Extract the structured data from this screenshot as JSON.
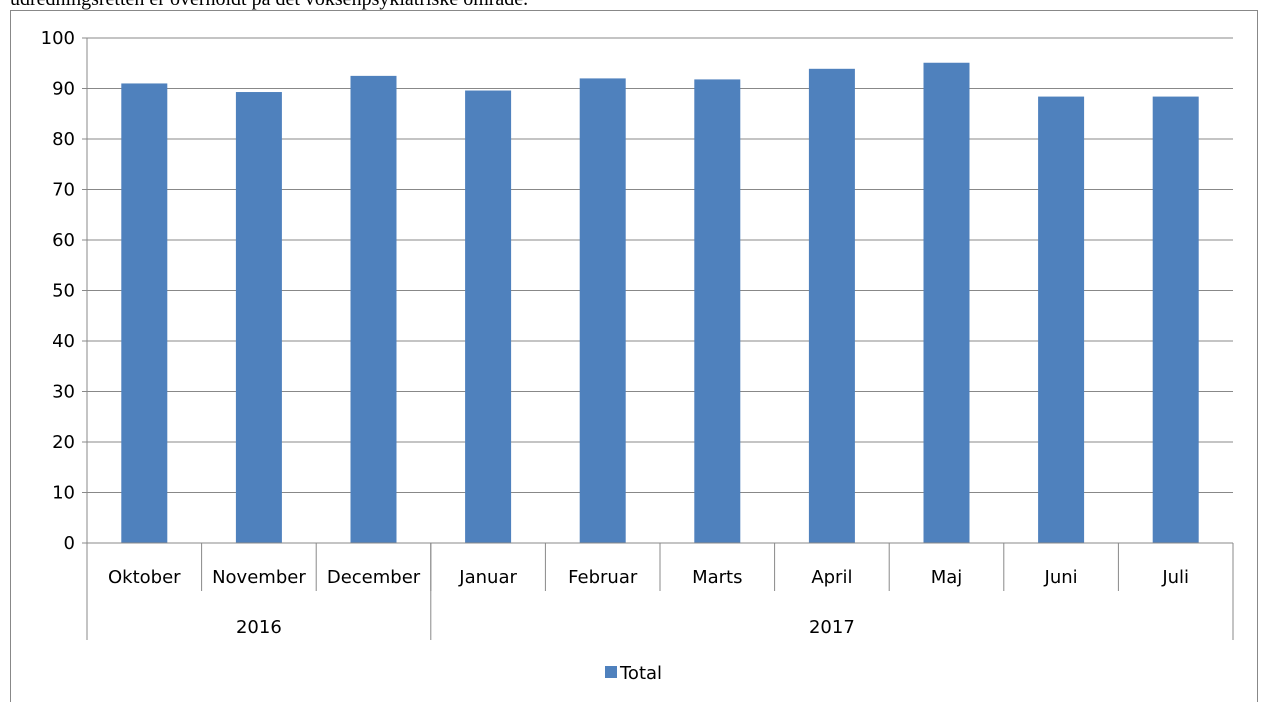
{
  "caption": "udredningsretten er overholdt på det voksenpsykiatriske område.",
  "chart_data": {
    "type": "bar",
    "categories": [
      "Oktober",
      "November",
      "December",
      "Januar",
      "Februar",
      "Marts",
      "April",
      "Maj",
      "Juni",
      "Juli"
    ],
    "x_groups": [
      {
        "label": "2016",
        "span": 3
      },
      {
        "label": "2017",
        "span": 7
      }
    ],
    "series": [
      {
        "name": "Total",
        "color": "#4f81bd",
        "values": [
          91,
          89.3,
          92.5,
          89.6,
          92,
          91.8,
          93.9,
          95.1,
          88.4,
          88.4
        ]
      }
    ],
    "ylim": [
      0,
      100
    ],
    "yticks": [
      0,
      10,
      20,
      30,
      40,
      50,
      60,
      70,
      80,
      90,
      100
    ],
    "grid": true,
    "legend": "bottom"
  }
}
